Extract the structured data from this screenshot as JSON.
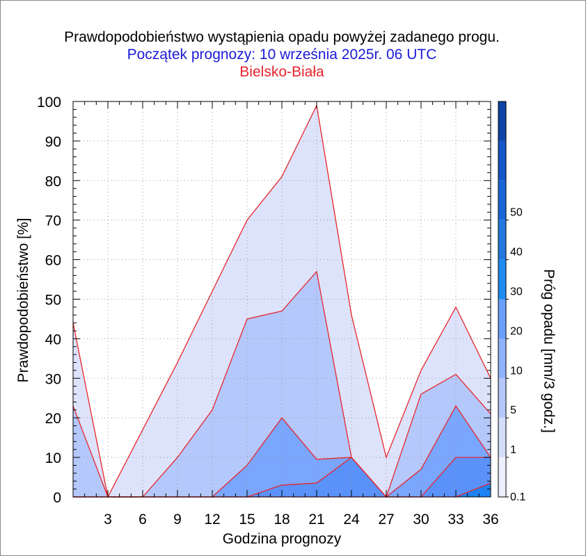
{
  "title": "Prawdopodobieństwo wystąpienia opadu powyżej zadanego progu.",
  "subtitle": "Początek prognozy: 10 września 2025r. 06 UTC",
  "location": "Bielsko-Biała",
  "colors": {
    "title": "#000000",
    "subtitle": "#1a1ad8",
    "location": "#e8242c",
    "series_line": "#e8242c"
  },
  "chart_data": {
    "type": "area",
    "title": "Prawdopodobieństwo wystąpienia opadu powyżej zadanego progu.",
    "xlabel": "Godzina prognozy",
    "ylabel": "Prawdopodobieństwo [%]",
    "xlim": [
      0,
      36
    ],
    "ylim": [
      0,
      100
    ],
    "x": [
      0,
      3,
      6,
      9,
      12,
      15,
      18,
      21,
      24,
      27,
      30,
      33,
      36
    ],
    "x_tick_labels": [
      "3",
      "6",
      "9",
      "12",
      "15",
      "18",
      "21",
      "24",
      "27",
      "30",
      "33",
      "36"
    ],
    "y_ticks": [
      0,
      10,
      20,
      30,
      40,
      50,
      60,
      70,
      80,
      90,
      100
    ],
    "grid": true,
    "series": [
      {
        "name": "0.1",
        "color": "#dde3fb",
        "values": [
          44,
          0,
          17,
          34,
          52,
          70,
          81,
          99,
          46,
          10,
          32,
          48,
          30
        ]
      },
      {
        "name": "1",
        "color": "#b4c8fb",
        "values": [
          23,
          0,
          0,
          10,
          22,
          45,
          47,
          57,
          10,
          0,
          26,
          31,
          21
        ]
      },
      {
        "name": "5",
        "color": "#7aa6fd",
        "values": [
          0,
          0,
          0,
          0,
          0,
          8,
          20,
          9.5,
          10,
          0,
          7,
          23,
          10
        ]
      },
      {
        "name": "10",
        "color": "#5a92fa",
        "values": [
          0,
          0,
          0,
          0,
          0,
          0,
          3,
          3.5,
          10,
          0,
          0,
          10,
          10
        ]
      },
      {
        "name": "20",
        "color": "#1e82f2",
        "values": [
          0,
          0,
          0,
          0,
          0,
          0,
          0,
          0,
          0,
          0,
          0,
          0,
          3.5
        ]
      }
    ],
    "colorbar": {
      "label": "Próg opadu [mm/3 godz.]",
      "tick_labels": [
        "0.1",
        "1",
        "5",
        "10",
        "20",
        "30",
        "40",
        "50"
      ],
      "colors": [
        "#eef1fd",
        "#d4defb",
        "#b4c8fb",
        "#8fb3fb",
        "#6aa0fb",
        "#1d8cf3",
        "#2378e0",
        "#1a66d8",
        "#1556c8",
        "#0f44a8"
      ]
    }
  }
}
